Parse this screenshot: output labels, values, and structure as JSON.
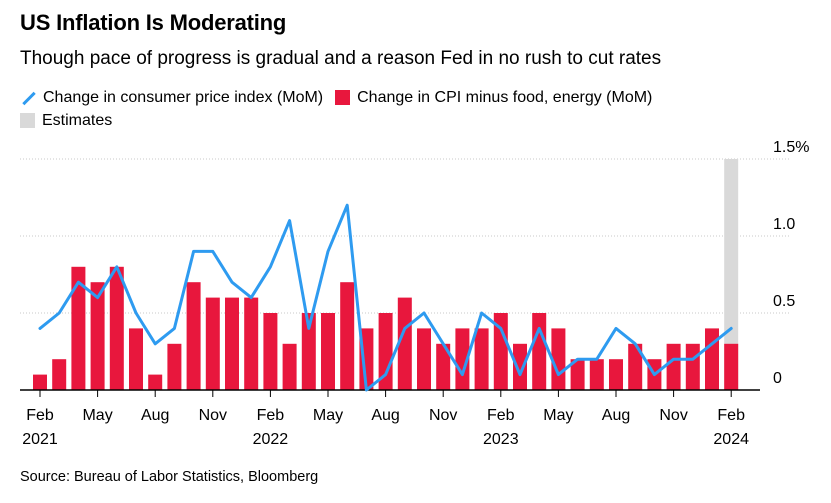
{
  "header": {
    "title": "US Inflation Is Moderating",
    "subtitle": "Though pace of progress is gradual and a reason Fed in no rush to cut rates"
  },
  "legend": {
    "items": [
      {
        "label": "Change in consumer price index (MoM)",
        "kind": "line",
        "color": "#2e9bf0"
      },
      {
        "label": "Change in CPI minus food, energy (MoM)",
        "kind": "bar",
        "color": "#e8173d"
      },
      {
        "label": "Estimates",
        "kind": "bar",
        "color": "#d9d9d9"
      }
    ]
  },
  "footer": {
    "source": "Source: Bureau of Labor Statistics, Bloomberg"
  },
  "chart_data": {
    "type": "bar",
    "months": [
      "2021-02",
      "2021-03",
      "2021-04",
      "2021-05",
      "2021-06",
      "2021-07",
      "2021-08",
      "2021-09",
      "2021-10",
      "2021-11",
      "2021-12",
      "2022-01",
      "2022-02",
      "2022-03",
      "2022-04",
      "2022-05",
      "2022-06",
      "2022-07",
      "2022-08",
      "2022-09",
      "2022-10",
      "2022-11",
      "2022-12",
      "2023-01",
      "2023-02",
      "2023-03",
      "2023-04",
      "2023-05",
      "2023-06",
      "2023-07",
      "2023-08",
      "2023-09",
      "2023-10",
      "2023-11",
      "2023-12",
      "2024-01",
      "2024-02"
    ],
    "x_tick_labels": [
      {
        "month": "2021-02",
        "label": "Feb",
        "year": "2021"
      },
      {
        "month": "2021-05",
        "label": "May",
        "year": ""
      },
      {
        "month": "2021-08",
        "label": "Aug",
        "year": ""
      },
      {
        "month": "2021-11",
        "label": "Nov",
        "year": ""
      },
      {
        "month": "2022-02",
        "label": "Feb",
        "year": "2022"
      },
      {
        "month": "2022-05",
        "label": "May",
        "year": ""
      },
      {
        "month": "2022-08",
        "label": "Aug",
        "year": ""
      },
      {
        "month": "2022-11",
        "label": "Nov",
        "year": ""
      },
      {
        "month": "2023-02",
        "label": "Feb",
        "year": "2023"
      },
      {
        "month": "2023-05",
        "label": "May",
        "year": ""
      },
      {
        "month": "2023-08",
        "label": "Aug",
        "year": ""
      },
      {
        "month": "2023-11",
        "label": "Nov",
        "year": ""
      },
      {
        "month": "2024-02",
        "label": "Feb",
        "year": "2024"
      }
    ],
    "y_tick_labels": [
      {
        "value": 0,
        "label": "0"
      },
      {
        "value": 0.5,
        "label": "0.5"
      },
      {
        "value": 1.0,
        "label": "1.0"
      },
      {
        "value": 1.5,
        "label": "1.5%"
      }
    ],
    "ylim": [
      0,
      1.5
    ],
    "grid": "horizontal",
    "series": [
      {
        "name": "Change in CPI minus food, energy (MoM)",
        "kind": "bar",
        "color": "#e8173d",
        "values": [
          0.1,
          0.2,
          0.8,
          0.7,
          0.8,
          0.4,
          0.1,
          0.3,
          0.7,
          0.6,
          0.6,
          0.6,
          0.5,
          0.3,
          0.5,
          0.5,
          0.7,
          0.4,
          0.5,
          0.6,
          0.4,
          0.3,
          0.4,
          0.4,
          0.5,
          0.3,
          0.5,
          0.4,
          0.2,
          0.2,
          0.2,
          0.3,
          0.2,
          0.3,
          0.3,
          0.4,
          0.3
        ]
      },
      {
        "name": "Change in consumer price index (MoM)",
        "kind": "line",
        "color": "#2e9bf0",
        "values": [
          0.4,
          0.5,
          0.7,
          0.6,
          0.8,
          0.5,
          0.3,
          0.4,
          0.9,
          0.9,
          0.7,
          0.6,
          0.8,
          1.1,
          0.4,
          0.9,
          1.2,
          0.0,
          0.1,
          0.4,
          0.5,
          0.3,
          0.1,
          0.5,
          0.4,
          0.1,
          0.4,
          0.1,
          0.2,
          0.2,
          0.4,
          0.3,
          0.1,
          0.2,
          0.2,
          0.3,
          0.4
        ]
      },
      {
        "name": "Estimates",
        "kind": "band",
        "color": "#d9d9d9",
        "month": "2024-02",
        "value": 1.5
      }
    ]
  }
}
